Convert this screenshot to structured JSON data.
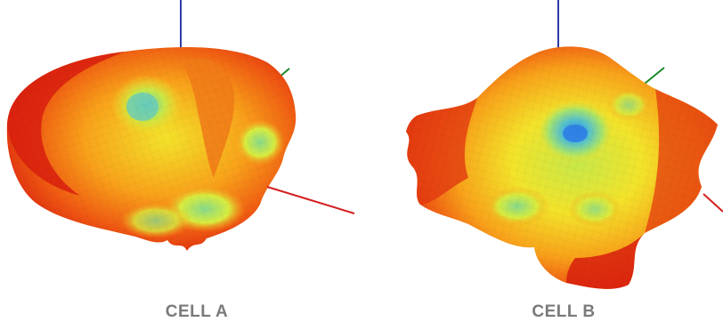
{
  "panels": [
    {
      "caption": "CELL A"
    },
    {
      "caption": "CELL B"
    }
  ],
  "axis_colors": {
    "z_axis": "#2b3aa8",
    "y_axis": "#1a8a2a",
    "x_axis": "#d42020"
  },
  "colormap": [
    "#d81e0e",
    "#ef5a12",
    "#f8a21a",
    "#f3e32a",
    "#c6e84a",
    "#86d98a",
    "#52bfd0",
    "#2f7fe6"
  ]
}
